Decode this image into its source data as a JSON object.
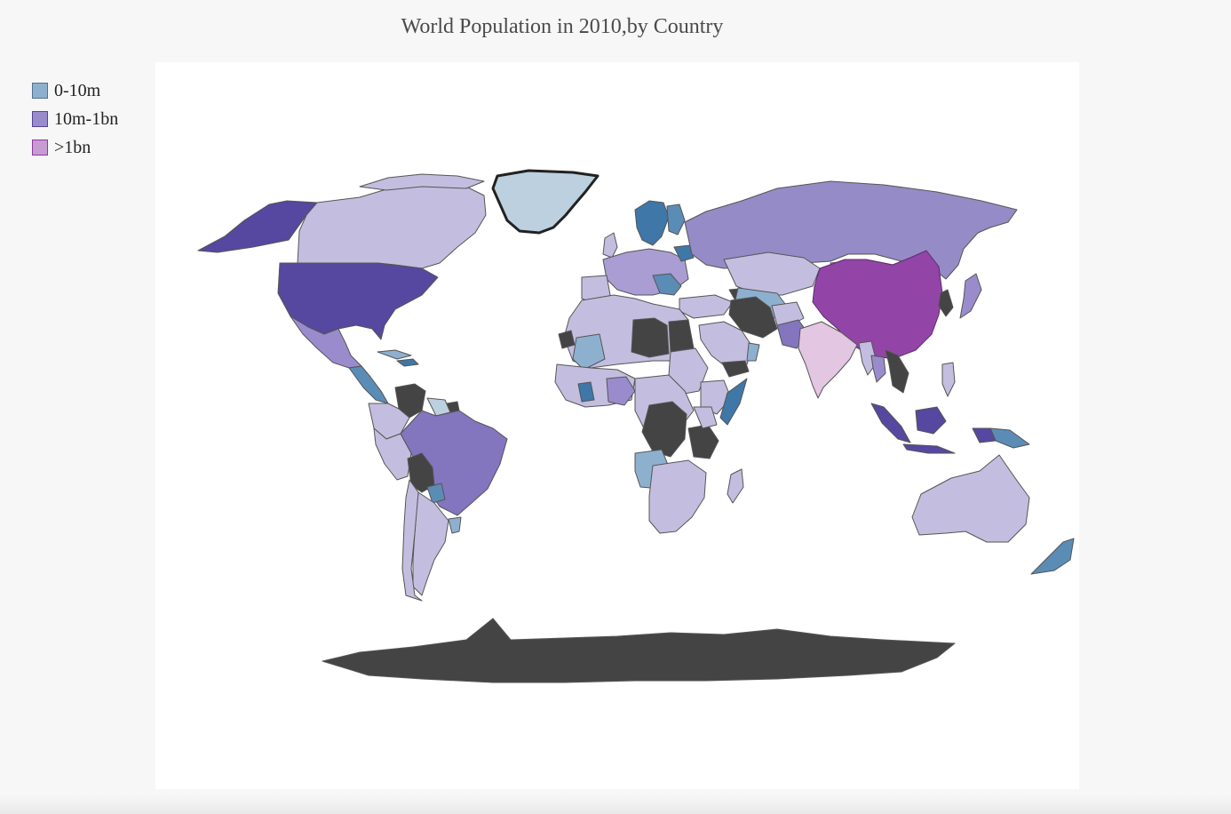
{
  "title": "World Population in 2010,by Country",
  "legend": [
    {
      "label": "0-10m",
      "fill": "#8eb0cf",
      "stroke": "#4f7193"
    },
    {
      "label": "10m-1bn",
      "fill": "#9a8ccc",
      "stroke": "#544597"
    },
    {
      "label": ">1bn",
      "fill": "#c99bd3",
      "stroke": "#8c3a9c"
    }
  ],
  "colors": {
    "panel": "#ffffff",
    "background": "#f7f7f7",
    "no_data": "#444444",
    "border": "#555555"
  }
}
